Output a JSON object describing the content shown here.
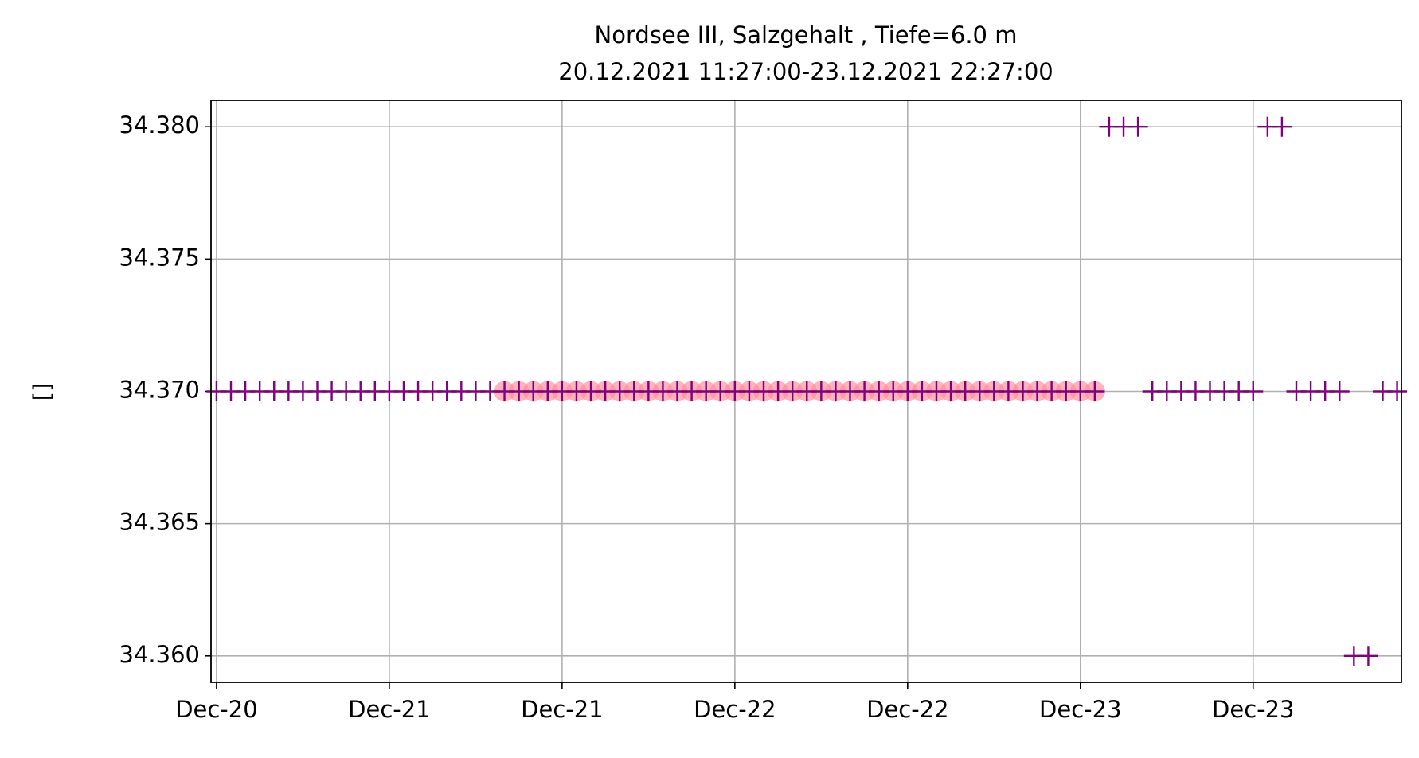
{
  "chart_data": {
    "type": "scatter",
    "title": "Nordsee III, Salzgehalt , Tiefe=6.0 m",
    "subtitle": "20.12.2021 11:27:00-23.12.2021 22:27:00",
    "y_label": "[]",
    "x": [
      "2021-12-20 12:00",
      "2021-12-20 13:00",
      "2021-12-20 14:00",
      "2021-12-20 15:00",
      "2021-12-20 16:00",
      "2021-12-20 17:00",
      "2021-12-20 18:00",
      "2021-12-20 19:00",
      "2021-12-20 20:00",
      "2021-12-20 21:00",
      "2021-12-20 22:00",
      "2021-12-20 23:00",
      "2021-12-21 00:00",
      "2021-12-21 01:00",
      "2021-12-21 02:00",
      "2021-12-21 03:00",
      "2021-12-21 04:00",
      "2021-12-21 05:00",
      "2021-12-21 06:00",
      "2021-12-21 07:00",
      "2021-12-21 08:00",
      "2021-12-21 09:00",
      "2021-12-21 10:00",
      "2021-12-21 11:00",
      "2021-12-21 12:00",
      "2021-12-21 13:00",
      "2021-12-21 14:00",
      "2021-12-21 15:00",
      "2021-12-21 16:00",
      "2021-12-21 17:00",
      "2021-12-21 18:00",
      "2021-12-21 19:00",
      "2021-12-21 20:00",
      "2021-12-21 21:00",
      "2021-12-21 22:00",
      "2021-12-21 23:00",
      "2021-12-22 00:00",
      "2021-12-22 01:00",
      "2021-12-22 02:00",
      "2021-12-22 03:00",
      "2021-12-22 04:00",
      "2021-12-22 05:00",
      "2021-12-22 06:00",
      "2021-12-22 07:00",
      "2021-12-22 08:00",
      "2021-12-22 09:00",
      "2021-12-22 10:00",
      "2021-12-22 11:00",
      "2021-12-22 12:00",
      "2021-12-22 13:00",
      "2021-12-22 14:00",
      "2021-12-22 15:00",
      "2021-12-22 16:00",
      "2021-12-22 17:00",
      "2021-12-22 18:00",
      "2021-12-22 19:00",
      "2021-12-22 20:00",
      "2021-12-22 21:00",
      "2021-12-22 22:00",
      "2021-12-22 23:00",
      "2021-12-23 00:00",
      "2021-12-23 01:00",
      "2021-12-23 02:00",
      "2021-12-23 03:00",
      "2021-12-23 04:00",
      "2021-12-23 05:00",
      "2021-12-23 06:00",
      "2021-12-23 07:00",
      "2021-12-23 08:00",
      "2021-12-23 09:00",
      "2021-12-23 10:00",
      "2021-12-23 11:00",
      "2021-12-23 12:00",
      "2021-12-23 13:00",
      "2021-12-23 14:00",
      "2021-12-23 15:00",
      "2021-12-23 16:00",
      "2021-12-23 17:00",
      "2021-12-23 18:00",
      "2021-12-23 19:00",
      "2021-12-23 20:00",
      "2021-12-23 21:00",
      "2021-12-23 22:00"
    ],
    "series": [
      {
        "marker": "circle",
        "color": "#ff8a9a",
        "values": [
          null,
          null,
          null,
          null,
          null,
          null,
          null,
          null,
          null,
          null,
          null,
          null,
          null,
          null,
          null,
          null,
          null,
          null,
          null,
          null,
          34.37,
          34.37,
          34.37,
          34.37,
          34.37,
          34.37,
          34.37,
          34.37,
          34.37,
          34.37,
          34.37,
          34.37,
          34.37,
          34.37,
          34.37,
          34.37,
          34.37,
          34.37,
          34.37,
          34.37,
          34.37,
          34.37,
          34.37,
          34.37,
          34.37,
          34.37,
          34.37,
          34.37,
          34.37,
          34.37,
          34.37,
          34.37,
          34.37,
          34.37,
          34.37,
          34.37,
          34.37,
          34.37,
          34.37,
          34.37,
          34.37,
          34.37,
          null,
          null,
          null,
          null,
          null,
          null,
          null,
          null,
          null,
          null,
          null,
          null,
          null,
          null,
          null,
          null,
          null,
          null,
          null,
          null,
          null
        ]
      },
      {
        "marker": "plus",
        "color": "#800080",
        "values": [
          34.37,
          34.37,
          34.37,
          34.37,
          34.37,
          34.37,
          34.37,
          34.37,
          34.37,
          34.37,
          34.37,
          34.37,
          34.37,
          34.37,
          34.37,
          34.37,
          34.37,
          34.37,
          34.37,
          34.37,
          34.37,
          34.37,
          34.37,
          34.37,
          34.37,
          34.37,
          34.37,
          34.37,
          34.37,
          34.37,
          34.37,
          34.37,
          34.37,
          34.37,
          34.37,
          34.37,
          34.37,
          34.37,
          34.37,
          34.37,
          34.37,
          34.37,
          34.37,
          34.37,
          34.37,
          34.37,
          34.37,
          34.37,
          34.37,
          34.37,
          34.37,
          34.37,
          34.37,
          34.37,
          34.37,
          34.37,
          34.37,
          34.37,
          34.37,
          34.37,
          34.37,
          34.37,
          34.38,
          34.38,
          34.38,
          34.37,
          34.37,
          34.37,
          34.37,
          34.37,
          34.37,
          34.37,
          34.37,
          34.38,
          34.38,
          34.37,
          34.37,
          34.37,
          34.37,
          34.36,
          34.36,
          34.37,
          34.37
        ]
      }
    ],
    "xlim": [
      "2021-12-20 11:37",
      "2021-12-23 22:18"
    ],
    "xticks": [
      {
        "value": "2021-12-20 12:00",
        "label": "Dec-20"
      },
      {
        "value": "2021-12-21 00:00",
        "label": "Dec-21"
      },
      {
        "value": "2021-12-21 12:00",
        "label": "Dec-21"
      },
      {
        "value": "2021-12-22 00:00",
        "label": "Dec-22"
      },
      {
        "value": "2021-12-22 12:00",
        "label": "Dec-22"
      },
      {
        "value": "2021-12-23 00:00",
        "label": "Dec-23"
      },
      {
        "value": "2021-12-23 12:00",
        "label": "Dec-23"
      }
    ],
    "ylim": [
      34.359,
      34.381
    ],
    "yticks": [
      {
        "value": 34.36,
        "label": "34.360"
      },
      34.365,
      {
        "value": 34.37,
        "label": "34.370"
      },
      34.375,
      {
        "value": 34.38,
        "label": "34.380"
      }
    ],
    "grid": true
  }
}
